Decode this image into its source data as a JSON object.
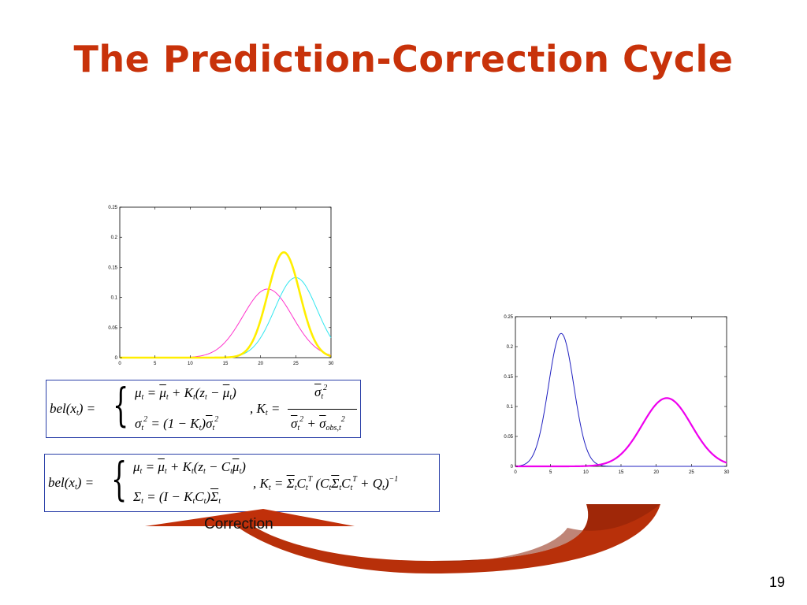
{
  "slide": {
    "title": "The Prediction-Correction Cycle",
    "page_number": "19",
    "arrow_label": "Correction",
    "colors": {
      "title": "#c8320a",
      "arrow": "#c0300a",
      "box_border": "#2a3fa8"
    }
  },
  "equations": {
    "eq1": {
      "lhs": "bel(xt) =",
      "mu_line": "μt = μ̄t + Kt(zt − μ̄t)",
      "sigma_line": "σt² = (1 − Kt) σ̄t²",
      "gain": "Kt = σ̄t² / (σ̄t² + σ̄obs,t²)"
    },
    "eq2": {
      "lhs": "bel(xt) =",
      "mu_line": "μt = μ̄t + Kt(zt − Ct μ̄t)",
      "sigma_line": "Σt = (I − Kt Ct) Σ̄t",
      "gain": "Kt = Σ̄t CtT (Ct Σ̄t CtT + Qt)−1"
    }
  },
  "chart_data": [
    {
      "type": "line",
      "xlim": [
        0,
        30
      ],
      "ylim": [
        0,
        0.25
      ],
      "x_ticks": [
        "0",
        "5",
        "10",
        "15",
        "20",
        "25",
        "30"
      ],
      "y_ticks": [
        "0",
        "0.05",
        "0.1",
        "0.15",
        "0.2",
        "0.25"
      ],
      "grid": false,
      "series": [
        {
          "color": "#ff33cc",
          "mean": 21,
          "std": 3.5,
          "peak": 0.114,
          "stroke": 1
        },
        {
          "color": "#33e6f0",
          "mean": 25,
          "std": 3.0,
          "peak": 0.133,
          "stroke": 1
        },
        {
          "color": "#ffee00",
          "mean": 23.3,
          "std": 2.3,
          "peak": 0.175,
          "stroke": 2.6
        }
      ]
    },
    {
      "type": "line",
      "xlim": [
        0,
        30
      ],
      "ylim": [
        0,
        0.25
      ],
      "x_ticks": [
        "0",
        "5",
        "10",
        "15",
        "20",
        "25",
        "30"
      ],
      "y_ticks": [
        "0",
        "0.05",
        "0.1",
        "0.15",
        "0.2",
        "0.25"
      ],
      "grid": false,
      "series": [
        {
          "color": "#2020c0",
          "mean": 6.5,
          "std": 1.8,
          "peak": 0.222,
          "stroke": 1
        },
        {
          "color": "#ee00ee",
          "mean": 21.5,
          "std": 3.5,
          "peak": 0.114,
          "stroke": 2.2
        }
      ]
    }
  ]
}
